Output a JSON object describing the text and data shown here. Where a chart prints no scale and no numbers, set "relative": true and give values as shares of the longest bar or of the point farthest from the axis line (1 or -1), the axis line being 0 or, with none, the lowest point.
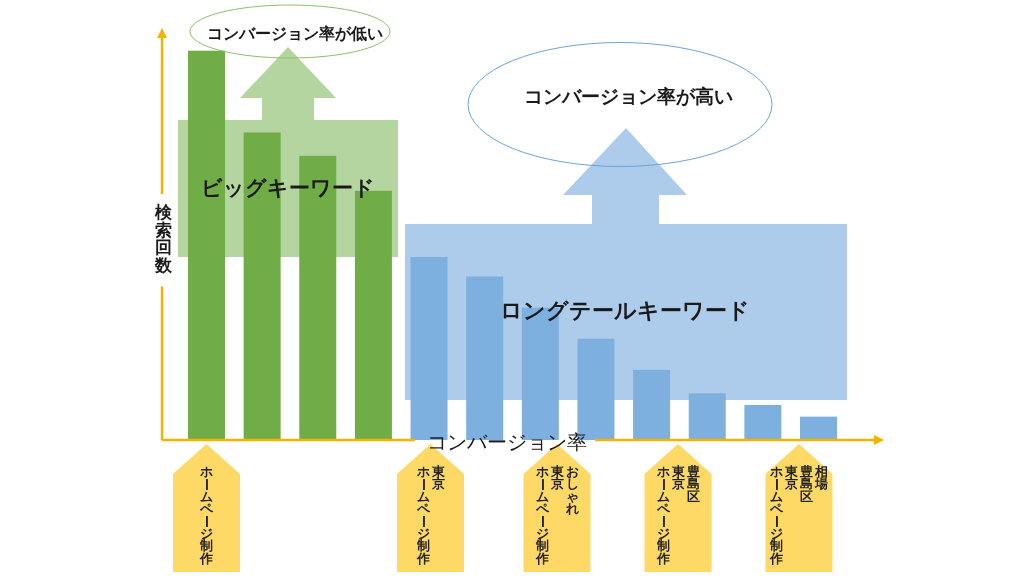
{
  "chart_data": {
    "type": "bar",
    "relative": true,
    "categories": [
      null,
      null,
      null,
      null,
      null,
      null,
      null,
      null,
      null,
      null,
      null,
      null
    ],
    "values": [
      1,
      0.79,
      0.73,
      0.64,
      0.47,
      0.42,
      0.34,
      0.26,
      0.18,
      0.12,
      0.09,
      0.06
    ],
    "colors": [
      "#70ad47",
      "#70ad47",
      "#70ad47",
      "#70ad47",
      "#7dafdf",
      "#7dafdf",
      "#7dafdf",
      "#7dafdf",
      "#7dafdf",
      "#7dafdf",
      "#7dafdf",
      "#7dafdf"
    ],
    "xlabel": "コンバージョン率",
    "ylabel": "検索回数",
    "annotations": [
      "コンバージョン率が低い",
      "コンバージョン率が高い",
      "ビッグキーワード",
      "ロングテールキーワード",
      "ホームページ制作",
      "東京",
      "ホームページ制作",
      "おしゃれ",
      "東京",
      "ホームページ制作",
      "豊島区",
      "東京",
      "ホームページ制作",
      "相場",
      "豊島区",
      "東京",
      "ホームページ制作"
    ]
  }
}
